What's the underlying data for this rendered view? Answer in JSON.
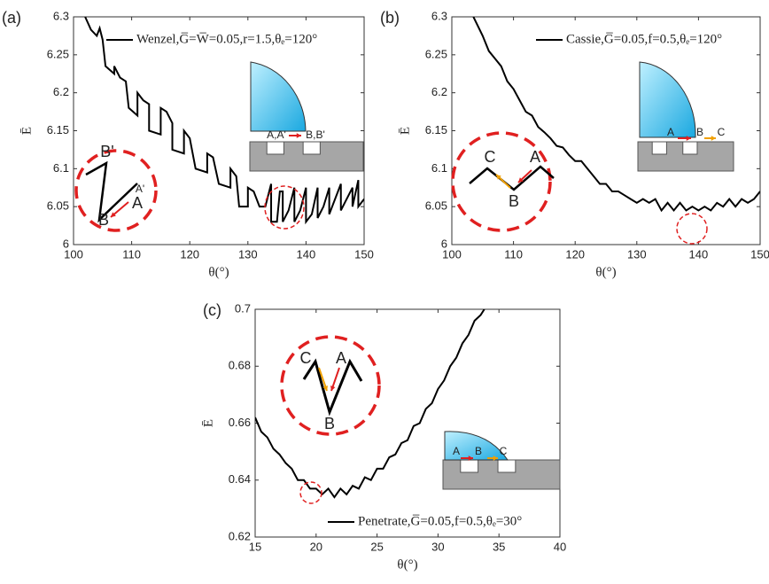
{
  "chart_data": [
    {
      "type": "line",
      "panel_label": "(a)",
      "xlabel": "θ(°)",
      "ylabel": "Ē",
      "xlim": [
        100,
        150
      ],
      "ylim": [
        6,
        6.3
      ],
      "xticks": [
        100,
        110,
        120,
        130,
        140,
        150
      ],
      "yticks": [
        6,
        6.05,
        6.1,
        6.15,
        6.2,
        6.25,
        6.3
      ],
      "legend": "top",
      "series": [
        {
          "name": "Wenzel,G̅=W̅=0.05,r=1.5,θₑ=120°",
          "color": "#000000",
          "x": [
            102,
            103,
            104,
            104.5,
            105,
            105.5,
            107,
            107,
            108,
            109,
            109.5,
            111,
            111,
            112,
            113,
            113,
            115,
            115,
            116,
            117,
            117,
            119,
            119,
            120,
            121,
            123,
            123,
            124,
            125,
            127,
            127,
            128,
            128.5,
            130,
            130,
            131,
            132,
            133,
            134,
            134,
            135,
            135.5,
            136,
            136,
            137,
            138,
            138,
            139,
            140,
            140,
            141,
            142,
            142,
            143,
            144,
            144,
            145,
            146,
            146,
            147,
            148,
            148,
            149,
            149,
            150
          ],
          "values": [
            6.3,
            6.283,
            6.275,
            6.285,
            6.27,
            6.235,
            6.225,
            6.235,
            6.22,
            6.215,
            6.18,
            6.17,
            6.2,
            6.19,
            6.185,
            6.15,
            6.145,
            6.18,
            6.175,
            6.16,
            6.125,
            6.12,
            6.15,
            6.14,
            6.1,
            6.095,
            6.12,
            6.115,
            6.08,
            6.075,
            6.1,
            6.09,
            6.05,
            6.05,
            6.075,
            6.07,
            6.05,
            6.05,
            6.08,
            6.03,
            6.03,
            6.07,
            6.07,
            6.03,
            6.045,
            6.075,
            6.03,
            6.045,
            6.075,
            6.03,
            6.04,
            6.075,
            6.035,
            6.05,
            6.075,
            6.04,
            6.06,
            6.08,
            6.045,
            6.06,
            6.075,
            6.05,
            6.085,
            6.05,
            6.06
          ]
        }
      ],
      "annotations": [
        "A,A'",
        "B,B'",
        "B'",
        "A'",
        "A",
        "B"
      ]
    },
    {
      "type": "line",
      "panel_label": "(b)",
      "xlabel": "θ(°)",
      "ylabel": "Ē",
      "xlim": [
        100,
        150
      ],
      "ylim": [
        6,
        6.3
      ],
      "xticks": [
        100,
        110,
        120,
        130,
        140,
        150
      ],
      "yticks": [
        6,
        6.05,
        6.1,
        6.15,
        6.2,
        6.25,
        6.3
      ],
      "legend": "top",
      "series": [
        {
          "name": "Cassie,G̅=0.05,f=0.5,θₑ=120°",
          "color": "#000000",
          "x": [
            103.5,
            105,
            106,
            107,
            108,
            109,
            110,
            111,
            112,
            113,
            114,
            115,
            116,
            117,
            118,
            119,
            120,
            121,
            122,
            123,
            124,
            125,
            126,
            127,
            128,
            129,
            130,
            131,
            132,
            133,
            134,
            135,
            136,
            137,
            138,
            139,
            140,
            141,
            142,
            143,
            144,
            145,
            146,
            147,
            148,
            149,
            150
          ],
          "values": [
            6.3,
            6.275,
            6.255,
            6.245,
            6.235,
            6.215,
            6.205,
            6.19,
            6.175,
            6.17,
            6.155,
            6.148,
            6.14,
            6.13,
            6.128,
            6.118,
            6.11,
            6.11,
            6.1,
            6.09,
            6.08,
            6.08,
            6.07,
            6.07,
            6.065,
            6.06,
            6.055,
            6.06,
            6.055,
            6.06,
            6.045,
            6.055,
            6.045,
            6.055,
            6.045,
            6.05,
            6.045,
            6.05,
            6.045,
            6.055,
            6.05,
            6.06,
            6.05,
            6.06,
            6.055,
            6.06,
            6.07
          ]
        }
      ],
      "annotations": [
        "A",
        "B",
        "C",
        "C",
        "A",
        "B"
      ]
    },
    {
      "type": "line",
      "panel_label": "(c)",
      "xlabel": "θ(°)",
      "ylabel": "Ē",
      "xlim": [
        15,
        40
      ],
      "ylim": [
        0.62,
        0.7
      ],
      "xticks": [
        15,
        20,
        25,
        30,
        35,
        40
      ],
      "yticks": [
        0.62,
        0.64,
        0.66,
        0.68,
        0.7
      ],
      "legend": "bottom",
      "series": [
        {
          "name": "Penetrate,G̅=0.05,f=0.5,θₑ=30°",
          "color": "#000000",
          "x": [
            15,
            15.5,
            16,
            16.5,
            17,
            17.5,
            18,
            18.5,
            19,
            19.5,
            20,
            20.5,
            21,
            21.5,
            22,
            22.5,
            23,
            23.5,
            24,
            24.5,
            25,
            25.5,
            26,
            26.5,
            27,
            27.5,
            28,
            28.5,
            29,
            29.5,
            30,
            30.5,
            31,
            31.5,
            32,
            32.5,
            33,
            33.5,
            33.8
          ],
          "values": [
            0.662,
            0.657,
            0.655,
            0.651,
            0.649,
            0.646,
            0.644,
            0.64,
            0.64,
            0.637,
            0.637,
            0.635,
            0.637,
            0.634,
            0.637,
            0.635,
            0.638,
            0.637,
            0.641,
            0.64,
            0.644,
            0.644,
            0.648,
            0.649,
            0.653,
            0.654,
            0.659,
            0.66,
            0.665,
            0.667,
            0.672,
            0.675,
            0.68,
            0.683,
            0.688,
            0.691,
            0.696,
            0.698,
            0.7
          ]
        }
      ],
      "annotations": [
        "A",
        "B",
        "C",
        "C",
        "A",
        "B"
      ]
    }
  ]
}
